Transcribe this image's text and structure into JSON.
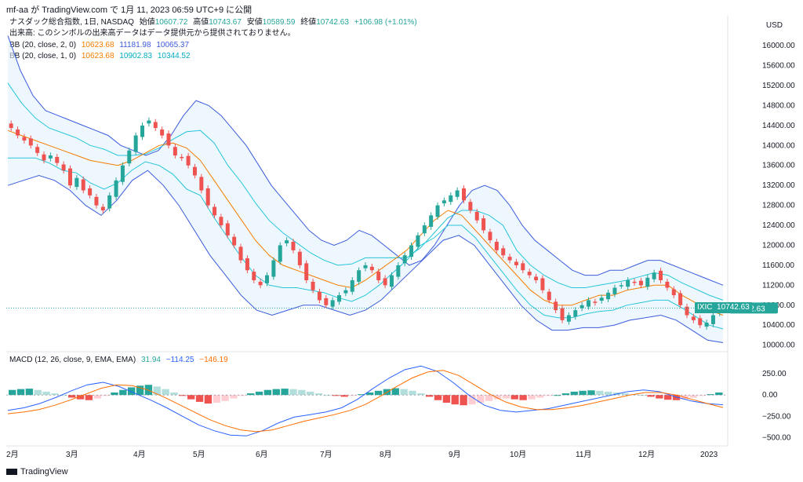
{
  "header": {
    "caption": "mf-aa が TradingView.com で 1月 11, 2023 06:59 UTC+9 に公開"
  },
  "legend": {
    "title": "ナスダック総合指数, 1日, NASDAQ",
    "ohlc": {
      "open_label": "始値",
      "open": "10607.72",
      "high_label": "高値",
      "high": "10743.67",
      "low_label": "安値",
      "low": "10589.59",
      "close_label": "終値",
      "close": "10742.63",
      "change": "+106.98 (+1.01%)"
    },
    "note": "出来高: このシンボルの出来高データはデータ提供元から提供されておりません。",
    "bb1": {
      "label": "BB (20, close, 2, 0)",
      "mid": "10623.68",
      "upper": "11181.98",
      "lower": "10065.37"
    },
    "bb2": {
      "label": "BB (20, close, 1, 0)",
      "mid": "10623.68",
      "upper": "10902.83",
      "lower": "10344.52"
    },
    "macd": {
      "label": "MACD (12, 26, close, 9, EMA, EMA)",
      "hist": "31.94",
      "macd": "−114.25",
      "signal": "−146.19"
    }
  },
  "currency": "USD",
  "ticker": {
    "symbol": "IXIC",
    "price": "10742.63"
  },
  "footer": {
    "brand": "TradingView"
  },
  "colors": {
    "up": "#26a69a",
    "down": "#ef5350",
    "bb_outer": "#3b5bdb",
    "bb_inner": "#26c6da",
    "bb_mid": "#f57c00",
    "macd_line": "#2962ff",
    "signal_line": "#ff6d00",
    "fill": "#e3f2fd"
  },
  "chart_data": [
    {
      "type": "candlestick",
      "title": "ナスダック総合指数, 1日, NASDAQ",
      "xlabel": "",
      "ylabel": "",
      "y_ticks": [
        "16000.00",
        "15600.00",
        "15200.00",
        "14800.00",
        "14400.00",
        "14000.00",
        "13600.00",
        "13200.00",
        "12800.00",
        "12400.00",
        "12000.00",
        "11600.00",
        "11200.00",
        "10800.00",
        "10400.00",
        "10000.00"
      ],
      "x_ticks": [
        "2月",
        "3月",
        "4月",
        "5月",
        "6月",
        "7月",
        "8月",
        "9月",
        "10月",
        "11月",
        "12月",
        "2023"
      ],
      "ylim": [
        9900,
        16600
      ],
      "closes": [
        14350,
        14200,
        14100,
        14000,
        13850,
        13700,
        13800,
        13650,
        13500,
        13200,
        13350,
        13100,
        13000,
        12800,
        12700,
        13000,
        13300,
        13600,
        13900,
        14200,
        14400,
        14500,
        14350,
        14200,
        14000,
        13800,
        13750,
        13600,
        13400,
        13100,
        12800,
        12600,
        12400,
        12200,
        12000,
        11700,
        11500,
        11300,
        11200,
        11400,
        11700,
        12000,
        12100,
        11900,
        11600,
        11300,
        11100,
        10900,
        10800,
        10900,
        11000,
        11100,
        11300,
        11500,
        11600,
        11500,
        11300,
        11200,
        11400,
        11600,
        11800,
        12000,
        12200,
        12400,
        12600,
        12800,
        12900,
        13000,
        13100,
        12900,
        12700,
        12500,
        12300,
        12100,
        11900,
        11800,
        11700,
        11600,
        11500,
        11400,
        11300,
        11100,
        10900,
        10700,
        10500,
        10600,
        10700,
        10800,
        10900,
        10850,
        10950,
        11050,
        11150,
        11200,
        11300,
        11250,
        11200,
        11350,
        11450,
        11300,
        11150,
        11000,
        10800,
        10600,
        10500,
        10400,
        10450,
        10600,
        10750
      ],
      "bb_upper": [
        16200,
        15500,
        15000,
        14700,
        14600,
        14500,
        14400,
        14300,
        14200,
        14000,
        13900,
        13800,
        13900,
        14200,
        14600,
        14900,
        14800,
        14600,
        14300,
        14000,
        13600,
        13200,
        12900,
        12600,
        12300,
        12100,
        12000,
        12100,
        12300,
        12200,
        12000,
        11800,
        11600,
        11700,
        12000,
        12400,
        12800,
        13100,
        13200,
        13100,
        12800,
        12400,
        12100,
        11900,
        11700,
        11500,
        11400,
        11400,
        11500,
        11500,
        11600,
        11700,
        11700,
        11600,
        11500,
        11400,
        11300,
        11200
      ],
      "bb_mid": [
        14300,
        14200,
        14100,
        14000,
        13900,
        13800,
        13700,
        13650,
        13600,
        13700,
        13850,
        14000,
        14050,
        13950,
        13700,
        13300,
        12900,
        12500,
        12100,
        11800,
        11600,
        11500,
        11400,
        11300,
        11200,
        11150,
        11300,
        11500,
        11700,
        11900,
        12200,
        12500,
        12700,
        12600,
        12300,
        12000,
        11700,
        11400,
        11100,
        10900,
        10800,
        10800,
        10900,
        11000,
        11000,
        11100,
        11150,
        11200,
        11200,
        11000,
        10850,
        10700,
        10600
      ],
      "bb_lower": [
        13200,
        13300,
        13400,
        13300,
        13100,
        12800,
        12600,
        12900,
        13300,
        13500,
        13200,
        12800,
        12300,
        11800,
        11400,
        11000,
        10700,
        10600,
        10700,
        10800,
        10800,
        10700,
        10600,
        10700,
        10900,
        11200,
        11500,
        11800,
        12100,
        12200,
        12000,
        11600,
        11200,
        10800,
        10500,
        10300,
        10300,
        10350,
        10350,
        10400,
        10500,
        10550,
        10600,
        10500,
        10300,
        10100,
        10050
      ],
      "last_close": 10742.63
    },
    {
      "type": "bar",
      "title": "MACD (12, 26, close, 9, EMA, EMA)",
      "y_ticks": [
        "250.00",
        "0.00",
        "−250.00",
        "−500.00"
      ],
      "ylim": [
        -560,
        380
      ],
      "hist": [
        60,
        70,
        75,
        60,
        40,
        20,
        0,
        -30,
        -50,
        -60,
        -40,
        -10,
        30,
        60,
        90,
        110,
        120,
        100,
        70,
        30,
        -10,
        -50,
        -80,
        -100,
        -90,
        -70,
        -40,
        -10,
        20,
        40,
        60,
        70,
        75,
        70,
        60,
        40,
        20,
        0,
        -10,
        -20,
        -10,
        10,
        30,
        50,
        70,
        80,
        70,
        50,
        20,
        -20,
        -60,
        -90,
        -110,
        -120,
        -110,
        -90,
        -70,
        -50,
        -40,
        -50,
        -60,
        -50,
        -30,
        -10,
        0,
        20,
        40,
        50,
        55,
        50,
        40,
        30,
        20,
        10,
        0,
        -20,
        -40,
        -55,
        -60,
        -50,
        -30,
        -10,
        10,
        30
      ],
      "macd_line": [
        -180,
        -150,
        -100,
        -30,
        50,
        120,
        150,
        100,
        20,
        -60,
        -150,
        -250,
        -350,
        -420,
        -470,
        -480,
        -420,
        -330,
        -260,
        -230,
        -200,
        -150,
        -50,
        80,
        200,
        300,
        340,
        280,
        150,
        0,
        -120,
        -180,
        -200,
        -180,
        -160,
        -120,
        -80,
        -40,
        0,
        40,
        60,
        40,
        -20,
        -70,
        -100,
        -114
      ],
      "signal_line": [
        -220,
        -200,
        -170,
        -120,
        -60,
        10,
        80,
        120,
        110,
        60,
        -20,
        -110,
        -200,
        -290,
        -360,
        -410,
        -430,
        -410,
        -360,
        -310,
        -270,
        -230,
        -180,
        -110,
        -10,
        100,
        200,
        270,
        290,
        230,
        120,
        10,
        -80,
        -140,
        -170,
        -170,
        -150,
        -120,
        -80,
        -40,
        0,
        30,
        30,
        0,
        -50,
        -100,
        -146
      ]
    }
  ]
}
